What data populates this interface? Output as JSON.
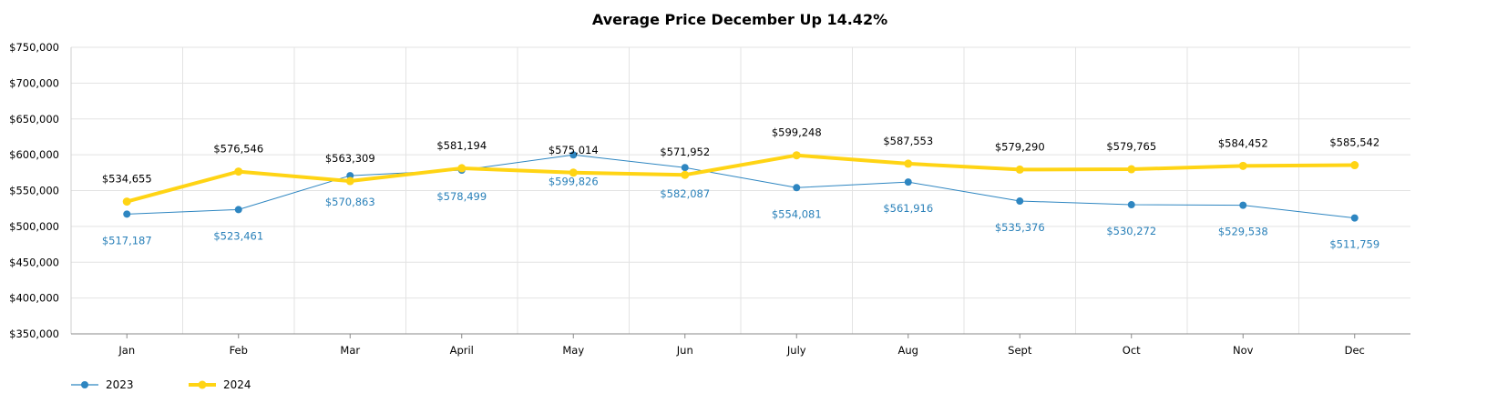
{
  "chart_data": {
    "type": "line",
    "title": "Average Price December Up 14.42%",
    "xlabel": "",
    "ylabel": "",
    "categories": [
      "Jan",
      "Feb",
      "Mar",
      "April",
      "May",
      "Jun",
      "July",
      "Aug",
      "Sept",
      "Oct",
      "Nov",
      "Dec"
    ],
    "ylim": [
      350000,
      750000
    ],
    "yticks": [
      350000,
      400000,
      450000,
      500000,
      550000,
      600000,
      650000,
      700000,
      750000
    ],
    "ytick_labels": [
      "$350,000",
      "$400,000",
      "$450,000",
      "$500,000",
      "$550,000",
      "$600,000",
      "$650,000",
      "$700,000",
      "$750,000"
    ],
    "grid": true,
    "legend_position": "bottom-left",
    "series": [
      {
        "name": "2023",
        "color": "#2e86c1",
        "line_style": "thin",
        "values": [
          517187,
          523461,
          570863,
          578499,
          599826,
          582087,
          554081,
          561916,
          535376,
          530272,
          529538,
          511759
        ],
        "labels": [
          "$517,187",
          "$523,461",
          "$570,863",
          "$578,499",
          "$599,826",
          "$582,087",
          "$554,081",
          "$561,916",
          "$535,376",
          "$530,272",
          "$529,538",
          "$511,759"
        ]
      },
      {
        "name": "2024",
        "color": "#ffd414",
        "line_style": "thick",
        "values": [
          534655,
          576546,
          563309,
          581194,
          575014,
          571952,
          599248,
          587553,
          579290,
          579765,
          584452,
          585542
        ],
        "labels": [
          "$534,655",
          "$576,546",
          "$563,309",
          "$581,194",
          "$575,014",
          "$571,952",
          "$599,248",
          "$587,553",
          "$579,290",
          "$579,765",
          "$584,452",
          "$585,542"
        ]
      }
    ]
  }
}
